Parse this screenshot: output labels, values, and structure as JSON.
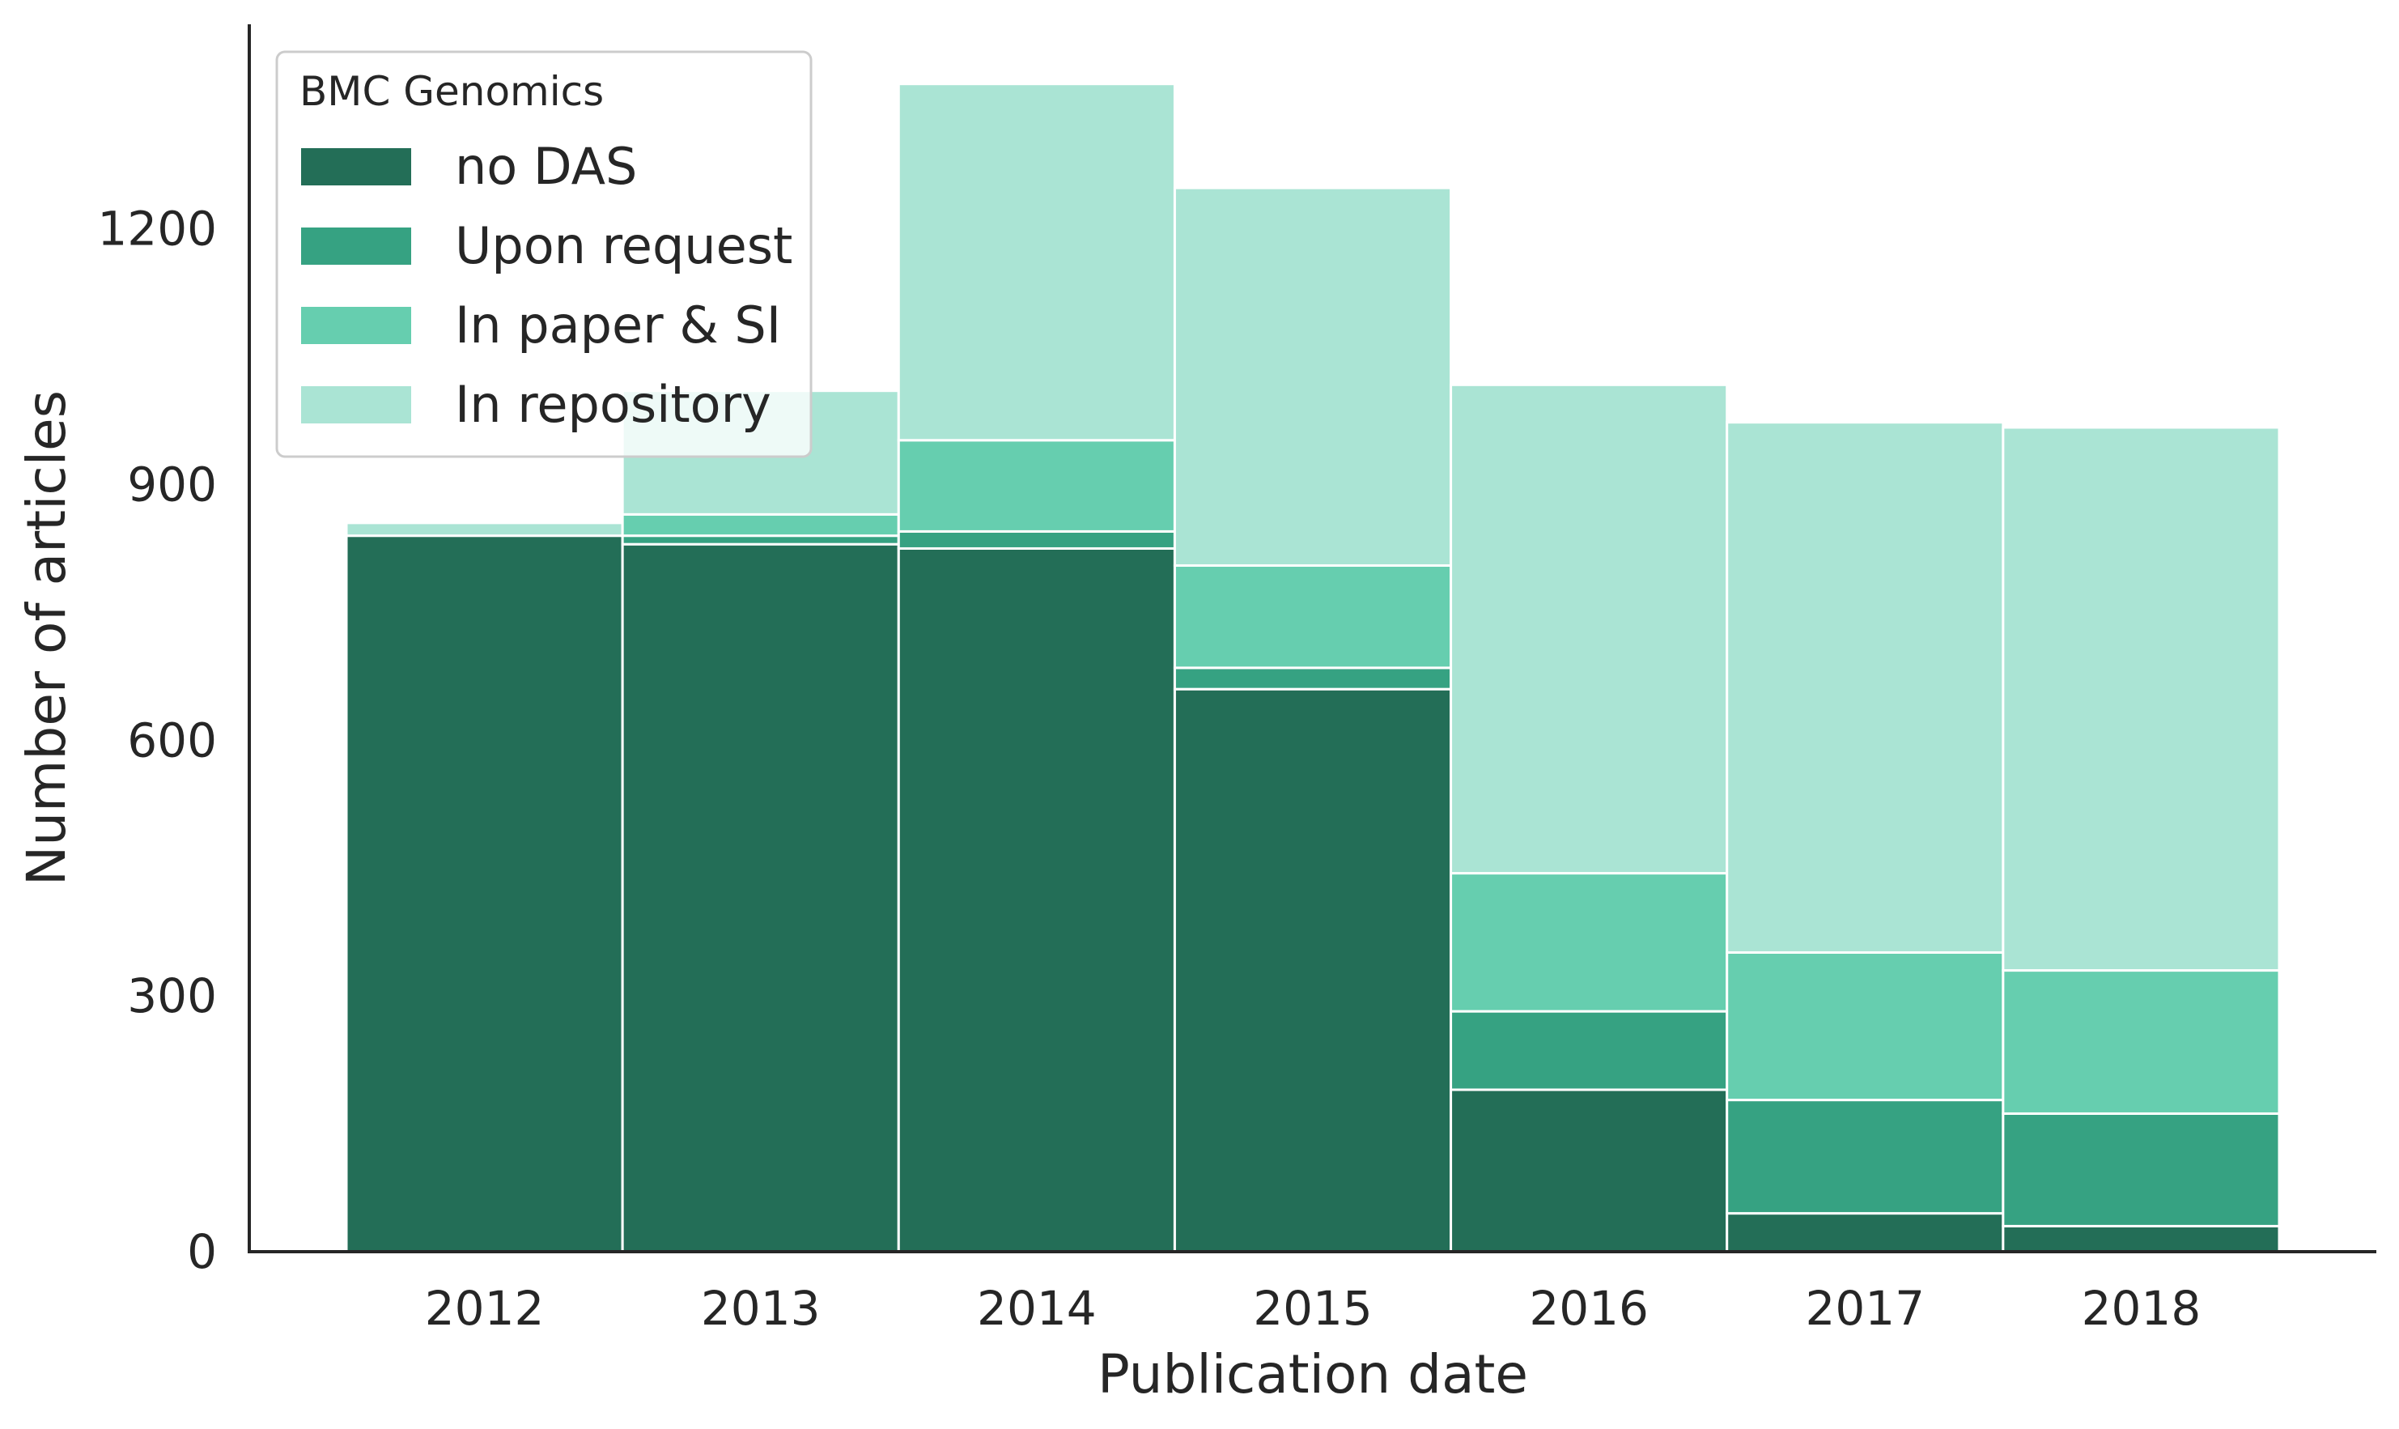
{
  "chart_data": {
    "type": "bar",
    "stacked": true,
    "xlabel": "Publication date",
    "ylabel": "Number of articles",
    "categories": [
      "2012",
      "2013",
      "2014",
      "2015",
      "2016",
      "2017",
      "2018"
    ],
    "series": [
      {
        "name": "no DAS",
        "color": "#236e57",
        "values": [
          840,
          830,
          825,
          660,
          190,
          45,
          30
        ]
      },
      {
        "name": "Upon request",
        "color": "#36a282",
        "values": [
          0,
          10,
          20,
          25,
          92,
          133,
          132
        ]
      },
      {
        "name": "In paper & SI",
        "color": "#66ceaf",
        "values": [
          0,
          25,
          107,
          120,
          162,
          173,
          168
        ]
      },
      {
        "name": "In repository",
        "color": "#aae4d4",
        "values": [
          15,
          145,
          418,
          443,
          573,
          622,
          637
        ]
      }
    ],
    "ylim": [
      0,
      1440
    ],
    "yticks": [
      0,
      300,
      600,
      900,
      1200
    ],
    "legend": {
      "title": "BMC Genomics",
      "position": "top-left"
    },
    "grid": false
  }
}
